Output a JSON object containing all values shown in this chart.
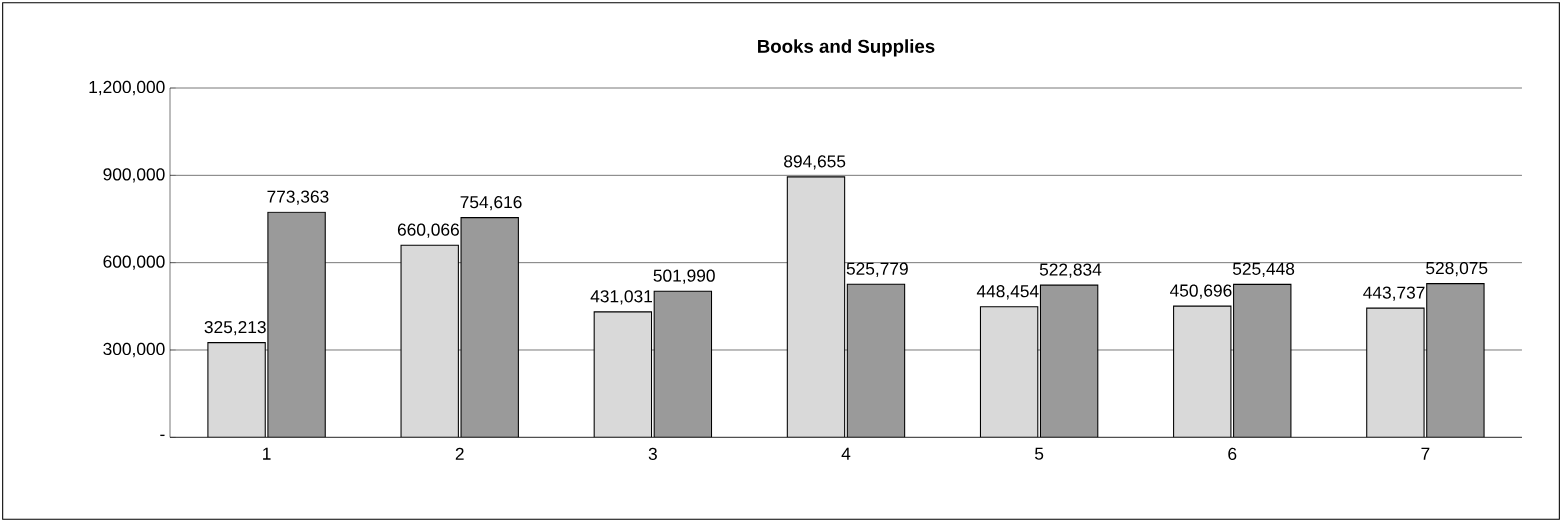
{
  "chart_data": {
    "type": "bar",
    "title": "Books and Supplies",
    "categories": [
      "1",
      "2",
      "3",
      "4",
      "5",
      "6",
      "7"
    ],
    "series": [
      {
        "color": "#d9d9d9",
        "values": [
          325213,
          660066,
          431031,
          894655,
          448454,
          450696,
          443737
        ],
        "value_labels": [
          "325,213",
          "660,066",
          "431,031",
          "894,655",
          "448,454",
          "450,696",
          "443,737"
        ]
      },
      {
        "color": "#9a9a9a",
        "values": [
          773363,
          754616,
          501990,
          525779,
          522834,
          525448,
          528075
        ],
        "value_labels": [
          "773,363",
          "754,616",
          "501,990",
          "525,779",
          "522,834",
          "525,448",
          "528,075"
        ]
      }
    ],
    "ylim": [
      0,
      1200000
    ],
    "yticks": [
      {
        "value": 0,
        "label": "-"
      },
      {
        "value": 300000,
        "label": "300,000"
      },
      {
        "value": 600000,
        "label": "600,000"
      },
      {
        "value": 900000,
        "label": "900,000"
      },
      {
        "value": 1200000,
        "label": "1,200,000"
      }
    ],
    "grid": "y"
  }
}
